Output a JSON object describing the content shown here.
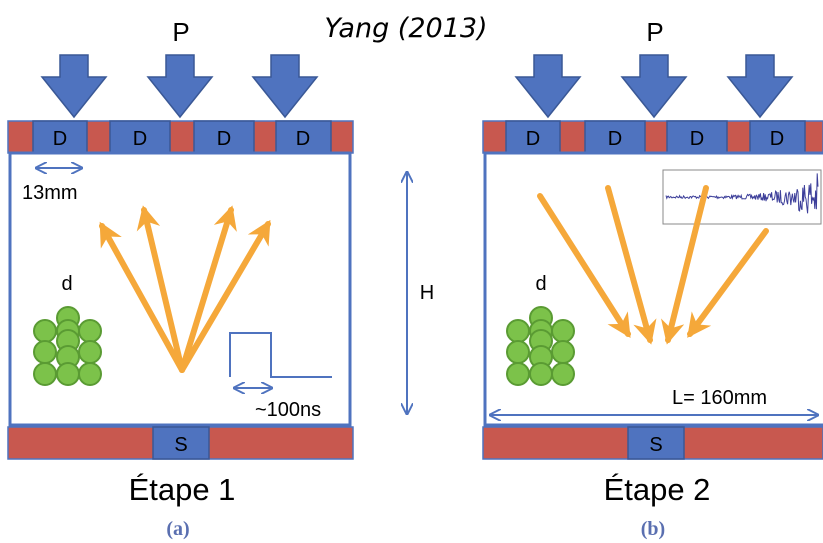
{
  "title": "Yang (2013)",
  "panels": [
    {
      "force_label": "P",
      "detector_labels": [
        "D",
        "D",
        "D",
        "D"
      ],
      "detector_spacing_label": "13mm",
      "particle_label": "d",
      "pulse_width_label": "~100ns",
      "source_label": "S",
      "stage_label": "Étape 1",
      "caption": "(a)"
    },
    {
      "force_label": "P",
      "detector_labels": [
        "D",
        "D",
        "D",
        "D"
      ],
      "particle_label": "d",
      "length_label": "L= 160mm",
      "source_label": "S",
      "stage_label": "Étape 2",
      "caption": "(b)"
    }
  ],
  "height_label": "H",
  "colors": {
    "substrate": "#c8584f",
    "detector": "#4f73bf",
    "box_border": "#4f73bf",
    "wave_arrow": "#f5a83a",
    "particle": "#7cc24a",
    "annotation": "#4f73bf",
    "signal": "#3d3f9a"
  }
}
